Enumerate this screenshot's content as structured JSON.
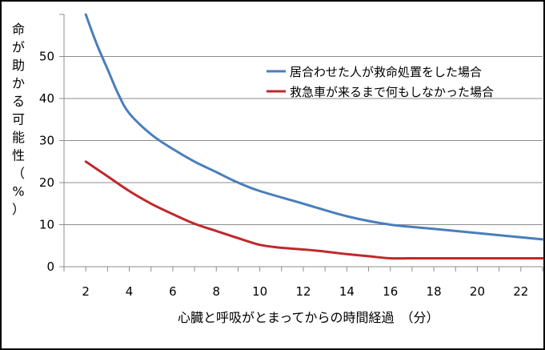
{
  "chart_data": {
    "type": "line",
    "title": "",
    "ylabel": "命が助かる可能性（%）",
    "xlabel": "心臓と呼吸がとまってからの時間経過　（分）",
    "xlim": [
      1,
      23
    ],
    "ylim": [
      0,
      60
    ],
    "x_ticks": [
      "2",
      "4",
      "6",
      "8",
      "10",
      "12",
      "14",
      "16",
      "18",
      "20",
      "22"
    ],
    "y_ticks": [
      "0",
      "10",
      "20",
      "30",
      "40",
      "50"
    ],
    "grid": "horizontal",
    "legend_position": "top-right",
    "series": [
      {
        "name": "居合わせた人が救命処置をした場合",
        "color": "#4a7ebb",
        "points": [
          [
            2,
            60
          ],
          [
            2.5,
            53
          ],
          [
            3,
            47
          ],
          [
            3.5,
            41
          ],
          [
            4,
            36.5
          ],
          [
            5,
            31.5
          ],
          [
            6,
            28
          ],
          [
            7,
            25
          ],
          [
            8,
            22.5
          ],
          [
            9,
            20
          ],
          [
            10,
            18
          ],
          [
            12,
            15
          ],
          [
            14,
            12
          ],
          [
            16,
            10
          ],
          [
            18,
            9
          ],
          [
            20,
            8
          ],
          [
            22,
            7
          ],
          [
            23,
            6.5
          ]
        ]
      },
      {
        "name": "救急車が来るまで何もしなかった場合",
        "color": "#c0282b",
        "points": [
          [
            2,
            25
          ],
          [
            3,
            21.5
          ],
          [
            4,
            18
          ],
          [
            5,
            15
          ],
          [
            6,
            12.5
          ],
          [
            7,
            10.2
          ],
          [
            8,
            8.5
          ],
          [
            9,
            6.8
          ],
          [
            10,
            5.2
          ],
          [
            11,
            4.5
          ],
          [
            12,
            4.1
          ],
          [
            13,
            3.6
          ],
          [
            14,
            3.0
          ],
          [
            15,
            2.5
          ],
          [
            16,
            2.0
          ],
          [
            17,
            2.0
          ],
          [
            18,
            2.0
          ],
          [
            20,
            2.0
          ],
          [
            22,
            2.0
          ],
          [
            23,
            2.0
          ]
        ]
      }
    ]
  }
}
